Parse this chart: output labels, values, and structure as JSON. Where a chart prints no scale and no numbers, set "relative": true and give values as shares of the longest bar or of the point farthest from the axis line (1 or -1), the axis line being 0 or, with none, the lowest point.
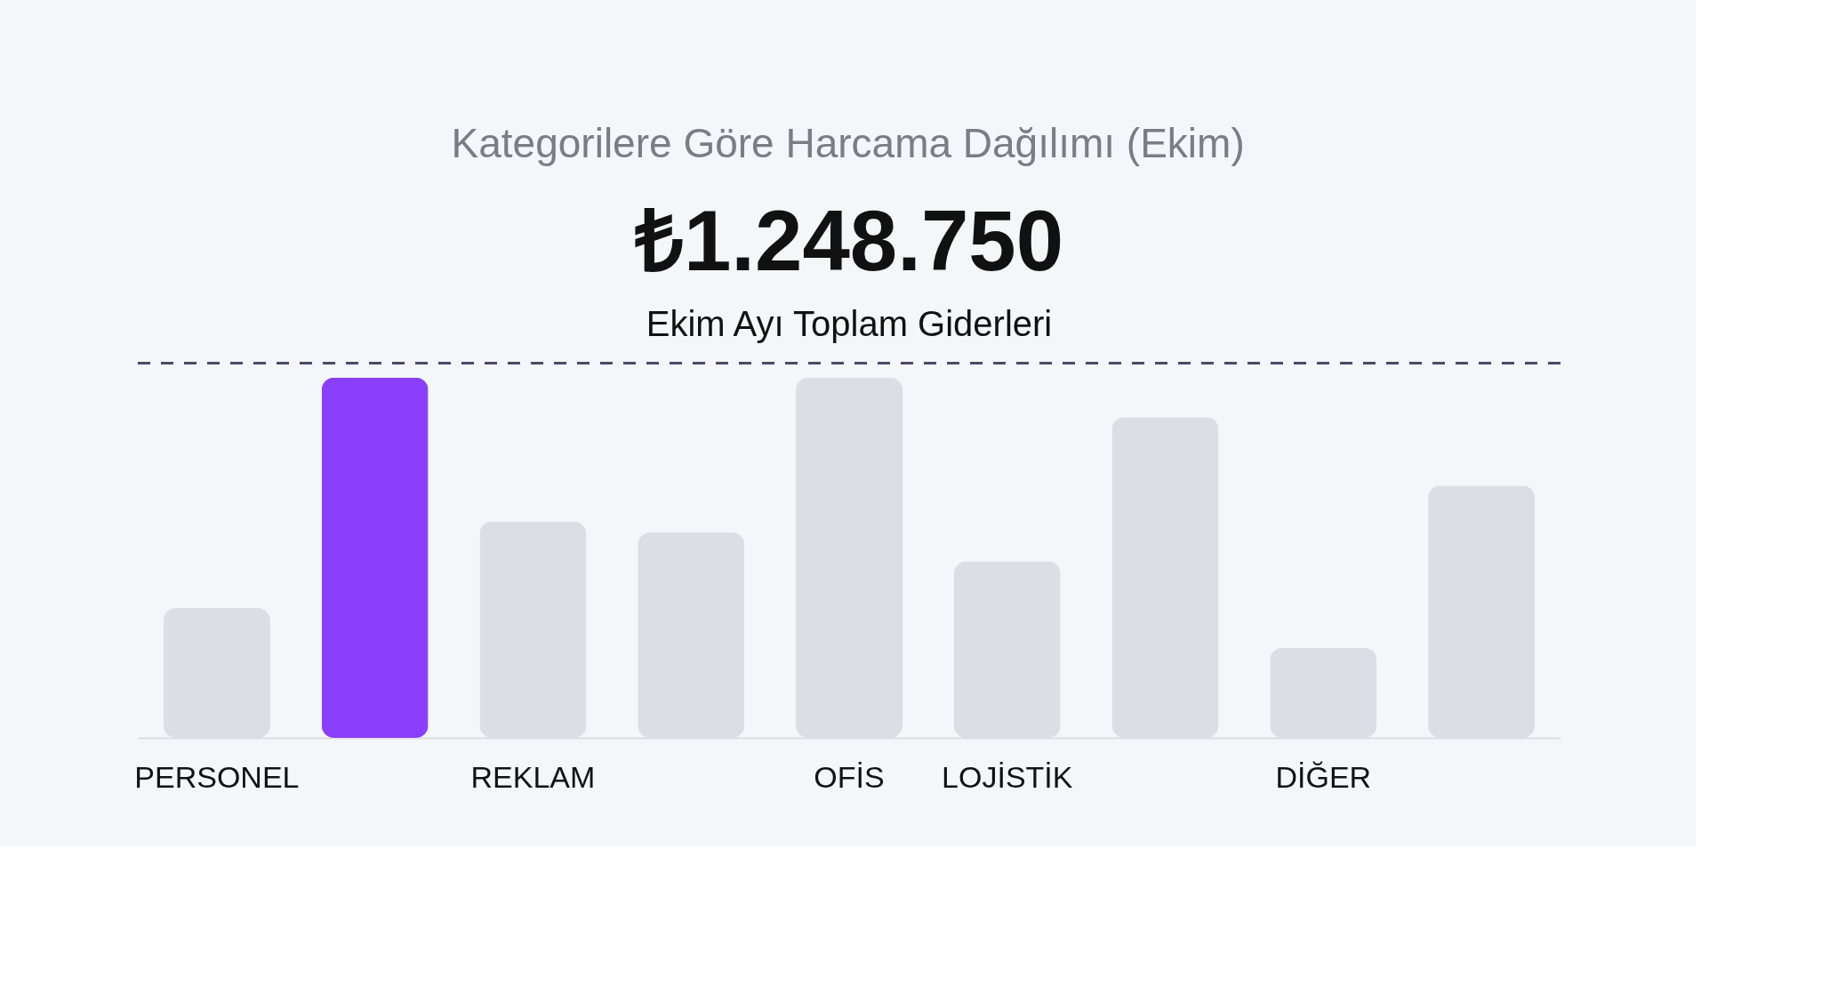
{
  "chart_data": {
    "type": "bar",
    "title": "Kategorilere Göre Harcama Dağılımı (Ekim)",
    "annotations": [
      "₺1.248.750",
      "Ekim Ayı Toplam Giderleri"
    ],
    "categories": [
      "PERSONEL",
      null,
      "REKLAM",
      null,
      "OFİS",
      "LOJİSTİK",
      null,
      "DİĞER",
      null
    ],
    "values": [
      0.36,
      1.0,
      0.6,
      0.57,
      1.0,
      0.49,
      0.89,
      0.25,
      0.7
    ],
    "colors": [
      "#dcdde5",
      "#8a3ffc",
      "#dcdde5",
      "#dcdde5",
      "#dcdde5",
      "#dcdde5",
      "#dcdde5",
      "#dcdde5",
      "#dcdde5"
    ],
    "relative": true,
    "ref_lines": [
      {
        "axis": "y",
        "value": 1.04,
        "label": null,
        "color": "#4a4a6a",
        "line_style": "dashed"
      }
    ],
    "grid": false
  }
}
